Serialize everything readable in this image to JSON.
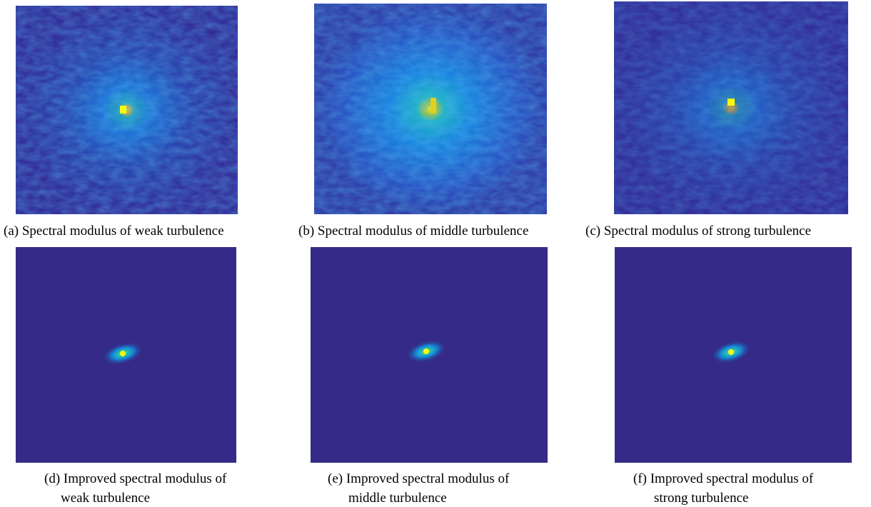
{
  "panels": [
    {
      "caption": [
        "(a) Spectral modulus of weak turbulence"
      ]
    },
    {
      "caption": [
        "(b) Spectral modulus of middle turbulence"
      ]
    },
    {
      "caption": [
        "(c) Spectral modulus of strong turbulence"
      ]
    },
    {
      "caption": [
        "(d) Improved spectral modulus of",
        "weak turbulence"
      ]
    },
    {
      "caption": [
        "(e) Improved spectral modulus of",
        "middle turbulence"
      ]
    },
    {
      "caption": [
        "(f) Improved spectral modulus of",
        "strong turbulence"
      ]
    }
  ]
}
